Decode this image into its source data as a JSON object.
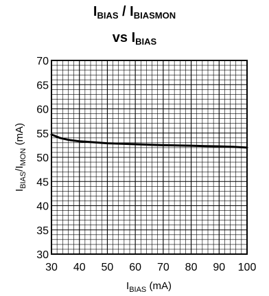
{
  "chart_data": {
    "type": "line",
    "title": {
      "line1_base": "I",
      "line1_sub": "BIAS",
      "line1_mid": " / I",
      "line1_sub2": "BIASMON"
    },
    "subtitle": {
      "prefix": "vs I",
      "sub": "BIAS"
    },
    "xlabel": {
      "base": "I",
      "sub": "BIAS",
      "suffix": " (mA)"
    },
    "ylabel": {
      "base": "I",
      "sub": "BIAS",
      "mid": "/I",
      "sub2": "MON",
      "suffix": " (mA)"
    },
    "xlim": [
      30,
      100
    ],
    "ylim": [
      30,
      70
    ],
    "x_ticks": [
      30,
      40,
      50,
      60,
      70,
      80,
      90,
      100
    ],
    "y_ticks": [
      30,
      35,
      40,
      45,
      50,
      55,
      60,
      65,
      70
    ],
    "grid": true,
    "series": [
      {
        "x": [
          30,
          33,
          36,
          40,
          45,
          50,
          55,
          60,
          65,
          70,
          75,
          80,
          85,
          90,
          95,
          100
        ],
        "values": [
          54.7,
          54.0,
          53.6,
          53.3,
          53.1,
          52.9,
          52.8,
          52.7,
          52.6,
          52.5,
          52.45,
          52.4,
          52.3,
          52.25,
          52.15,
          52.0
        ]
      }
    ],
    "colors": {
      "line": "#000000",
      "grid": "#000000"
    }
  }
}
